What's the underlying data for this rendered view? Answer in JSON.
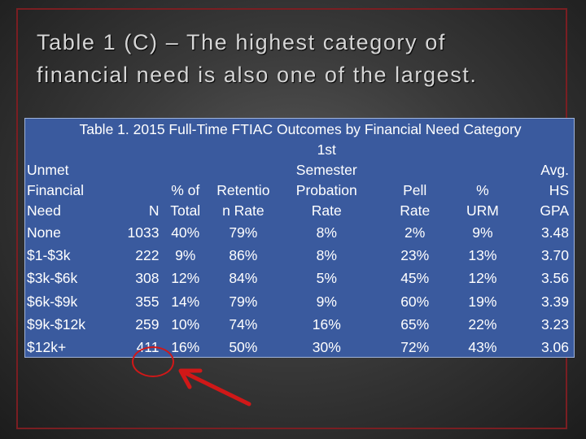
{
  "slide": {
    "title_line1": "Table 1 (C) – The highest category of",
    "title_line2": "financial need is also one of the largest."
  },
  "table": {
    "caption": "Table 1. 2015 Full-Time FTIAC Outcomes by Financial Need Category",
    "headers": [
      [
        "Unmet",
        "Financial",
        "Need"
      ],
      [
        "",
        "",
        "N"
      ],
      [
        "",
        "% of",
        "Total"
      ],
      [
        "",
        "Retentio",
        "n Rate"
      ],
      [
        "1st",
        "Semester",
        "Probation",
        "Rate"
      ],
      [
        "",
        "Pell",
        "Rate"
      ],
      [
        "",
        "%",
        "URM"
      ],
      [
        "",
        "Avg.",
        "HS",
        "GPA"
      ]
    ],
    "rows": [
      [
        "None",
        "1033",
        "40%",
        "79%",
        "8%",
        "2%",
        "9%",
        "3.48"
      ],
      [
        "$1-$3k",
        "222",
        "9%",
        "86%",
        "8%",
        "23%",
        "13%",
        "3.70"
      ],
      [
        "$3k-$6k",
        "308",
        "12%",
        "84%",
        "5%",
        "45%",
        "12%",
        "3.56"
      ],
      [
        "$6k-$9k",
        "355",
        "14%",
        "79%",
        "9%",
        "60%",
        "19%",
        "3.39"
      ],
      [
        "$9k-$12k",
        "259",
        "10%",
        "74%",
        "16%",
        "65%",
        "22%",
        "3.23"
      ],
      [
        "$12k+",
        "411",
        "16%",
        "50%",
        "30%",
        "72%",
        "43%",
        "3.06"
      ]
    ]
  },
  "colors": {
    "frame": "#7a1e22",
    "table_background": "#3a5a9e",
    "annotation": "#d01818"
  },
  "annotations": [
    "red-circle",
    "red-arrow"
  ]
}
